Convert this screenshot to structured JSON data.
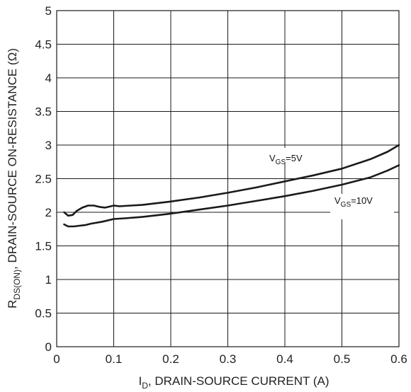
{
  "chart_data": {
    "type": "line",
    "xlabel": "I_D, DRAIN-SOURCE CURRENT (A)",
    "xlabel_parts": {
      "main": "I",
      "sub": "D",
      "rest": ", DRAIN-SOURCE CURRENT (A)"
    },
    "ylabel": "R_DS(ON), DRAIN-SOURCE ON-RESISTANCE (Ω)",
    "ylabel_parts": {
      "main": "R",
      "sub": "DS(ON)",
      "rest": ", DRAIN-SOURCE ON-RESISTANCE (Ω)"
    },
    "xlim": [
      0,
      0.6
    ],
    "ylim": [
      0,
      5
    ],
    "x_ticks": [
      "0",
      "0.1",
      "0.2",
      "0.3",
      "0.4",
      "0.5",
      "0.6"
    ],
    "y_ticks": [
      "0",
      "0.5",
      "1",
      "1.5",
      "2",
      "2.5",
      "3",
      "3.5",
      "4",
      "4.5",
      "5"
    ],
    "grid": true,
    "series": [
      {
        "label_main": "V",
        "label_sub": "GS",
        "label_rest": "=5V",
        "x": [
          0.013,
          0.02,
          0.028,
          0.035,
          0.045,
          0.055,
          0.065,
          0.075,
          0.085,
          0.095,
          0.1,
          0.11,
          0.13,
          0.15,
          0.2,
          0.25,
          0.3,
          0.35,
          0.4,
          0.45,
          0.5,
          0.55,
          0.58,
          0.6
        ],
        "values": [
          2.0,
          1.95,
          1.96,
          2.02,
          2.07,
          2.1,
          2.1,
          2.08,
          2.07,
          2.09,
          2.1,
          2.09,
          2.1,
          2.11,
          2.16,
          2.22,
          2.29,
          2.37,
          2.46,
          2.55,
          2.65,
          2.79,
          2.9,
          3.0
        ]
      },
      {
        "label_main": "V",
        "label_sub": "GS",
        "label_rest": "=10V",
        "x": [
          0.013,
          0.02,
          0.03,
          0.04,
          0.05,
          0.06,
          0.08,
          0.1,
          0.12,
          0.15,
          0.2,
          0.25,
          0.3,
          0.35,
          0.4,
          0.45,
          0.5,
          0.55,
          0.58,
          0.6
        ],
        "values": [
          1.82,
          1.79,
          1.79,
          1.8,
          1.81,
          1.83,
          1.86,
          1.9,
          1.91,
          1.93,
          1.98,
          2.04,
          2.1,
          2.17,
          2.24,
          2.32,
          2.41,
          2.52,
          2.62,
          2.7
        ]
      }
    ]
  }
}
